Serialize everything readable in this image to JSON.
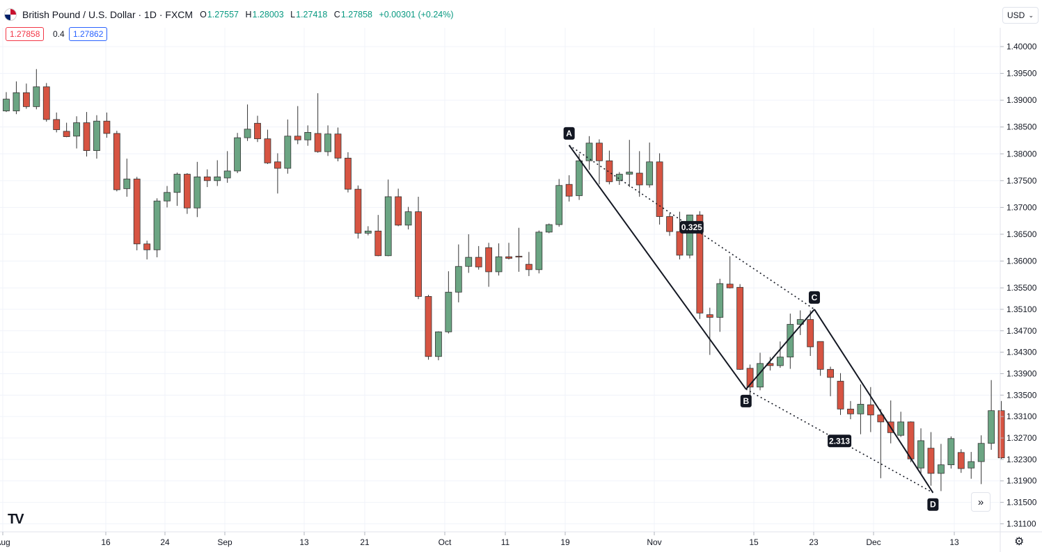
{
  "header": {
    "title": "British Pound / U.S. Dollar · 1D · FXCM",
    "open_label": "O",
    "open": "1.27557",
    "high_label": "H",
    "high": "1.28003",
    "low_label": "L",
    "low": "1.27418",
    "close_label": "C",
    "close": "1.27858",
    "change": "+0.00301 (+0.24%)"
  },
  "trade": {
    "sell_price": "1.27858",
    "spread": "0.4",
    "buy_price": "1.27862"
  },
  "currency_selector": {
    "label": "USD",
    "icon": "chevron-down-icon"
  },
  "logo_text": "TV",
  "scroll_button_icon": "double-chevron-right-icon",
  "settings_icon": "gear-icon",
  "colors": {
    "up": "#6ba583",
    "down": "#d75442",
    "grid": "#f0f3fa",
    "line": "#131722",
    "label_bg": "#131722"
  },
  "chart_data": {
    "type": "candlestick",
    "y_range": [
      1.3095,
      1.4035
    ],
    "y_ticks": [
      "1.40000",
      "1.39500",
      "1.39000",
      "1.38500",
      "1.38000",
      "1.37500",
      "1.37000",
      "1.36500",
      "1.36000",
      "1.35500",
      "1.35100",
      "1.34700",
      "1.34300",
      "1.33900",
      "1.33500",
      "1.33100",
      "1.32700",
      "1.32300",
      "1.31900",
      "1.31500",
      "1.31100"
    ],
    "x_labels": [
      "Aug",
      "16",
      "24",
      "Sep",
      "13",
      "21",
      "Oct",
      "11",
      "19",
      "Nov",
      "15",
      "23",
      "Dec",
      "13"
    ],
    "candles": [
      {
        "o": 1.388,
        "h": 1.3915,
        "l": 1.3878,
        "c": 1.3902
      },
      {
        "o": 1.388,
        "h": 1.3935,
        "l": 1.3874,
        "c": 1.3914
      },
      {
        "o": 1.3914,
        "h": 1.3931,
        "l": 1.3884,
        "c": 1.3888
      },
      {
        "o": 1.3888,
        "h": 1.3958,
        "l": 1.3883,
        "c": 1.3925
      },
      {
        "o": 1.3925,
        "h": 1.3932,
        "l": 1.386,
        "c": 1.3864
      },
      {
        "o": 1.3864,
        "h": 1.3877,
        "l": 1.384,
        "c": 1.3845
      },
      {
        "o": 1.3842,
        "h": 1.3858,
        "l": 1.3831,
        "c": 1.3832
      },
      {
        "o": 1.3833,
        "h": 1.387,
        "l": 1.381,
        "c": 1.3858
      },
      {
        "o": 1.3858,
        "h": 1.3878,
        "l": 1.3795,
        "c": 1.3806
      },
      {
        "o": 1.3806,
        "h": 1.3872,
        "l": 1.3791,
        "c": 1.3861
      },
      {
        "o": 1.3861,
        "h": 1.3877,
        "l": 1.383,
        "c": 1.3838
      },
      {
        "o": 1.3838,
        "h": 1.3843,
        "l": 1.373,
        "c": 1.3733
      },
      {
        "o": 1.3735,
        "h": 1.3791,
        "l": 1.372,
        "c": 1.3753
      },
      {
        "o": 1.3753,
        "h": 1.3757,
        "l": 1.362,
        "c": 1.3632
      },
      {
        "o": 1.3632,
        "h": 1.3638,
        "l": 1.3603,
        "c": 1.3621
      },
      {
        "o": 1.3621,
        "h": 1.3717,
        "l": 1.3607,
        "c": 1.3712
      },
      {
        "o": 1.3712,
        "h": 1.374,
        "l": 1.37,
        "c": 1.3728
      },
      {
        "o": 1.3728,
        "h": 1.3765,
        "l": 1.3703,
        "c": 1.3762
      },
      {
        "o": 1.3762,
        "h": 1.3764,
        "l": 1.3688,
        "c": 1.3699
      },
      {
        "o": 1.3699,
        "h": 1.3785,
        "l": 1.3682,
        "c": 1.3757
      },
      {
        "o": 1.3757,
        "h": 1.3771,
        "l": 1.3738,
        "c": 1.375
      },
      {
        "o": 1.375,
        "h": 1.3788,
        "l": 1.374,
        "c": 1.3757
      },
      {
        "o": 1.3755,
        "h": 1.3805,
        "l": 1.3746,
        "c": 1.3768
      },
      {
        "o": 1.3768,
        "h": 1.3839,
        "l": 1.3764,
        "c": 1.383
      },
      {
        "o": 1.383,
        "h": 1.3892,
        "l": 1.3824,
        "c": 1.3846
      },
      {
        "o": 1.3857,
        "h": 1.3871,
        "l": 1.3822,
        "c": 1.3828
      },
      {
        "o": 1.3828,
        "h": 1.3845,
        "l": 1.3781,
        "c": 1.3783
      },
      {
        "o": 1.3785,
        "h": 1.3801,
        "l": 1.3726,
        "c": 1.3773
      },
      {
        "o": 1.3773,
        "h": 1.3864,
        "l": 1.3763,
        "c": 1.3833
      },
      {
        "o": 1.3833,
        "h": 1.3889,
        "l": 1.3818,
        "c": 1.3826
      },
      {
        "o": 1.3826,
        "h": 1.3853,
        "l": 1.3815,
        "c": 1.384
      },
      {
        "o": 1.3838,
        "h": 1.3913,
        "l": 1.3802,
        "c": 1.3804
      },
      {
        "o": 1.3804,
        "h": 1.3853,
        "l": 1.3796,
        "c": 1.3837
      },
      {
        "o": 1.3837,
        "h": 1.3849,
        "l": 1.3786,
        "c": 1.3792
      },
      {
        "o": 1.3792,
        "h": 1.3803,
        "l": 1.3728,
        "c": 1.3734
      },
      {
        "o": 1.3734,
        "h": 1.3741,
        "l": 1.3642,
        "c": 1.3652
      },
      {
        "o": 1.3652,
        "h": 1.3665,
        "l": 1.3648,
        "c": 1.3656
      },
      {
        "o": 1.3656,
        "h": 1.3686,
        "l": 1.3609,
        "c": 1.361
      },
      {
        "o": 1.361,
        "h": 1.3752,
        "l": 1.3609,
        "c": 1.372
      },
      {
        "o": 1.372,
        "h": 1.3735,
        "l": 1.3665,
        "c": 1.3667
      },
      {
        "o": 1.3667,
        "h": 1.3701,
        "l": 1.3659,
        "c": 1.3692
      },
      {
        "o": 1.3692,
        "h": 1.372,
        "l": 1.3529,
        "c": 1.3534
      },
      {
        "o": 1.3534,
        "h": 1.3537,
        "l": 1.3416,
        "c": 1.3422
      },
      {
        "o": 1.3422,
        "h": 1.3469,
        "l": 1.3415,
        "c": 1.3468
      },
      {
        "o": 1.3468,
        "h": 1.3581,
        "l": 1.3465,
        "c": 1.3542
      },
      {
        "o": 1.3542,
        "h": 1.3631,
        "l": 1.3523,
        "c": 1.359
      },
      {
        "o": 1.359,
        "h": 1.365,
        "l": 1.3578,
        "c": 1.3607
      },
      {
        "o": 1.3607,
        "h": 1.3628,
        "l": 1.3584,
        "c": 1.3589
      },
      {
        "o": 1.3625,
        "h": 1.3634,
        "l": 1.3552,
        "c": 1.358
      },
      {
        "o": 1.358,
        "h": 1.3633,
        "l": 1.3573,
        "c": 1.3608
      },
      {
        "o": 1.3608,
        "h": 1.3634,
        "l": 1.3603,
        "c": 1.3605
      },
      {
        "o": 1.3609,
        "h": 1.3662,
        "l": 1.358,
        "c": 1.3608
      },
      {
        "o": 1.3594,
        "h": 1.3617,
        "l": 1.3572,
        "c": 1.3584
      },
      {
        "o": 1.3584,
        "h": 1.3657,
        "l": 1.3577,
        "c": 1.3654
      },
      {
        "o": 1.3654,
        "h": 1.367,
        "l": 1.3652,
        "c": 1.3668
      },
      {
        "o": 1.3668,
        "h": 1.3753,
        "l": 1.3664,
        "c": 1.3741
      },
      {
        "o": 1.3743,
        "h": 1.376,
        "l": 1.3711,
        "c": 1.3721
      },
      {
        "o": 1.3722,
        "h": 1.38,
        "l": 1.3714,
        "c": 1.3787
      },
      {
        "o": 1.3787,
        "h": 1.3833,
        "l": 1.377,
        "c": 1.382
      },
      {
        "o": 1.382,
        "h": 1.3827,
        "l": 1.3743,
        "c": 1.3787
      },
      {
        "o": 1.3787,
        "h": 1.3806,
        "l": 1.3743,
        "c": 1.3748
      },
      {
        "o": 1.375,
        "h": 1.3766,
        "l": 1.3742,
        "c": 1.3762
      },
      {
        "o": 1.3762,
        "h": 1.3826,
        "l": 1.3738,
        "c": 1.3766
      },
      {
        "o": 1.3764,
        "h": 1.3805,
        "l": 1.372,
        "c": 1.3742
      },
      {
        "o": 1.3742,
        "h": 1.3821,
        "l": 1.3737,
        "c": 1.3785
      },
      {
        "o": 1.3785,
        "h": 1.3801,
        "l": 1.3668,
        "c": 1.3683
      },
      {
        "o": 1.3683,
        "h": 1.3689,
        "l": 1.3647,
        "c": 1.3655
      },
      {
        "o": 1.3655,
        "h": 1.3692,
        "l": 1.3603,
        "c": 1.3611
      },
      {
        "o": 1.3611,
        "h": 1.3686,
        "l": 1.3605,
        "c": 1.3686
      },
      {
        "o": 1.3686,
        "h": 1.3693,
        "l": 1.3492,
        "c": 1.3503
      },
      {
        "o": 1.35,
        "h": 1.3513,
        "l": 1.3425,
        "c": 1.3495
      },
      {
        "o": 1.3495,
        "h": 1.3567,
        "l": 1.3468,
        "c": 1.3558
      },
      {
        "o": 1.3557,
        "h": 1.3609,
        "l": 1.3549,
        "c": 1.355
      },
      {
        "o": 1.3551,
        "h": 1.3557,
        "l": 1.3397,
        "c": 1.3398
      },
      {
        "o": 1.34,
        "h": 1.3407,
        "l": 1.335,
        "c": 1.3365
      },
      {
        "o": 1.3365,
        "h": 1.3429,
        "l": 1.3359,
        "c": 1.3409
      },
      {
        "o": 1.3409,
        "h": 1.3421,
        "l": 1.3396,
        "c": 1.3405
      },
      {
        "o": 1.3405,
        "h": 1.345,
        "l": 1.3401,
        "c": 1.3421
      },
      {
        "o": 1.3421,
        "h": 1.3502,
        "l": 1.3399,
        "c": 1.3482
      },
      {
        "o": 1.3482,
        "h": 1.3508,
        "l": 1.3462,
        "c": 1.3491
      },
      {
        "o": 1.3491,
        "h": 1.3508,
        "l": 1.3423,
        "c": 1.344
      },
      {
        "o": 1.345,
        "h": 1.3449,
        "l": 1.3386,
        "c": 1.3398
      },
      {
        "o": 1.3398,
        "h": 1.3403,
        "l": 1.3348,
        "c": 1.3383
      },
      {
        "o": 1.3376,
        "h": 1.3391,
        "l": 1.3313,
        "c": 1.3324
      },
      {
        "o": 1.3324,
        "h": 1.3339,
        "l": 1.3305,
        "c": 1.3315
      },
      {
        "o": 1.3315,
        "h": 1.337,
        "l": 1.3277,
        "c": 1.3333
      },
      {
        "o": 1.3332,
        "h": 1.3365,
        "l": 1.3281,
        "c": 1.3313
      },
      {
        "o": 1.3313,
        "h": 1.3324,
        "l": 1.3195,
        "c": 1.33
      },
      {
        "o": 1.33,
        "h": 1.334,
        "l": 1.326,
        "c": 1.328
      },
      {
        "o": 1.3275,
        "h": 1.3319,
        "l": 1.3272,
        "c": 1.33
      },
      {
        "o": 1.33,
        "h": 1.3301,
        "l": 1.3225,
        "c": 1.3231
      },
      {
        "o": 1.3214,
        "h": 1.3288,
        "l": 1.3203,
        "c": 1.3265
      },
      {
        "o": 1.3251,
        "h": 1.3281,
        "l": 1.3181,
        "c": 1.3204
      },
      {
        "o": 1.3204,
        "h": 1.3259,
        "l": 1.3171,
        "c": 1.322
      },
      {
        "o": 1.322,
        "h": 1.3273,
        "l": 1.3213,
        "c": 1.3269
      },
      {
        "o": 1.3243,
        "h": 1.3249,
        "l": 1.3205,
        "c": 1.3213
      },
      {
        "o": 1.3214,
        "h": 1.3244,
        "l": 1.3194,
        "c": 1.3226
      },
      {
        "o": 1.3226,
        "h": 1.3275,
        "l": 1.3184,
        "c": 1.326
      },
      {
        "o": 1.326,
        "h": 1.3378,
        "l": 1.3248,
        "c": 1.3321
      },
      {
        "o": 1.3321,
        "h": 1.3339,
        "l": 1.3231,
        "c": 1.3233
      }
    ],
    "harmonic_pattern": {
      "points": [
        {
          "label": "A",
          "index": 56.0,
          "price": 1.3816
        },
        {
          "label": "B",
          "index": 73.6,
          "price": 1.3361
        },
        {
          "label": "C",
          "index": 80.4,
          "price": 1.351
        },
        {
          "label": "D",
          "index": 92.2,
          "price": 1.3168
        }
      ],
      "ratios": [
        {
          "text": "0.325",
          "from": "A",
          "to": "C"
        },
        {
          "text": "2.313",
          "from": "B",
          "to": "D"
        }
      ]
    }
  }
}
